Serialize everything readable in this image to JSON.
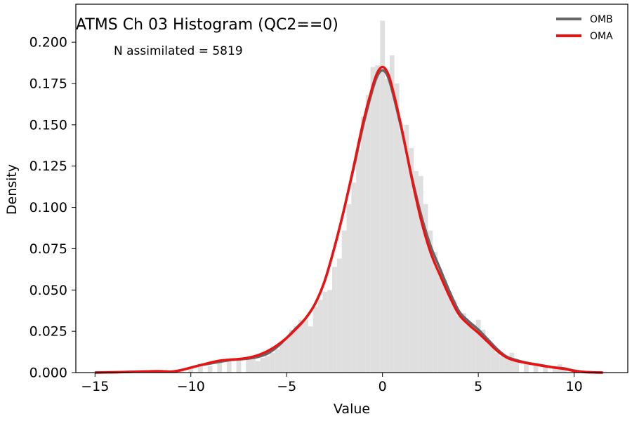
{
  "chart_data": {
    "type": "area",
    "title": "ATMS Ch 03 Histogram (QC2==0)",
    "annotation": "N assimilated = 5819",
    "xlabel": "Value",
    "ylabel": "Density",
    "xlim": [
      -16.0,
      12.8
    ],
    "ylim": [
      0.0,
      0.223
    ],
    "x_ticks": [
      -15,
      -10,
      -5,
      0,
      5,
      10
    ],
    "x_tick_labels": [
      "−15",
      "−10",
      "−5",
      "0",
      "5",
      "10"
    ],
    "y_ticks": [
      0.0,
      0.025,
      0.05,
      0.075,
      0.1,
      0.125,
      0.15,
      0.175,
      0.2
    ],
    "y_tick_labels": [
      "0.000",
      "0.025",
      "0.050",
      "0.075",
      "0.100",
      "0.125",
      "0.150",
      "0.175",
      "0.200"
    ],
    "grid": false,
    "legend_position": "top-right",
    "histogram": {
      "color": "#dfdfdf",
      "bin_width": 0.25,
      "bins": [
        [
          -15.0,
          0.0
        ],
        [
          -14.0,
          0.0
        ],
        [
          -13.0,
          0.0005
        ],
        [
          -12.0,
          0.0007
        ],
        [
          -11.0,
          0.0007
        ],
        [
          -10.5,
          0.002
        ],
        [
          -10.0,
          0.003
        ],
        [
          -9.5,
          0.004
        ],
        [
          -9.0,
          0.004
        ],
        [
          -8.5,
          0.007
        ],
        [
          -8.0,
          0.008
        ],
        [
          -7.5,
          0.008
        ],
        [
          -7.0,
          0.009
        ],
        [
          -6.75,
          0.009
        ],
        [
          -6.5,
          0.007
        ],
        [
          -6.25,
          0.009
        ],
        [
          -6.0,
          0.01
        ],
        [
          -5.75,
          0.012
        ],
        [
          -5.5,
          0.014
        ],
        [
          -5.25,
          0.018
        ],
        [
          -5.0,
          0.021
        ],
        [
          -4.75,
          0.026
        ],
        [
          -4.5,
          0.028
        ],
        [
          -4.25,
          0.032
        ],
        [
          -4.0,
          0.032
        ],
        [
          -3.75,
          0.028
        ],
        [
          -3.5,
          0.04
        ],
        [
          -3.25,
          0.044
        ],
        [
          -3.0,
          0.049
        ],
        [
          -2.75,
          0.05
        ],
        [
          -2.5,
          0.064
        ],
        [
          -2.25,
          0.069
        ],
        [
          -2.0,
          0.086
        ],
        [
          -1.75,
          0.102
        ],
        [
          -1.5,
          0.115
        ],
        [
          -1.25,
          0.135
        ],
        [
          -1.0,
          0.155
        ],
        [
          -0.75,
          0.168
        ],
        [
          -0.5,
          0.185
        ],
        [
          -0.25,
          0.186
        ],
        [
          0.0,
          0.213
        ],
        [
          0.25,
          0.178
        ],
        [
          0.5,
          0.192
        ],
        [
          0.75,
          0.175
        ],
        [
          1.0,
          0.146
        ],
        [
          1.25,
          0.15
        ],
        [
          1.5,
          0.136
        ],
        [
          1.75,
          0.122
        ],
        [
          2.0,
          0.119
        ],
        [
          2.25,
          0.102
        ],
        [
          2.5,
          0.086
        ],
        [
          2.75,
          0.073
        ],
        [
          3.0,
          0.062
        ],
        [
          3.25,
          0.056
        ],
        [
          3.5,
          0.049
        ],
        [
          3.75,
          0.044
        ],
        [
          4.0,
          0.034
        ],
        [
          4.25,
          0.036
        ],
        [
          4.5,
          0.03
        ],
        [
          4.75,
          0.029
        ],
        [
          5.0,
          0.032
        ],
        [
          5.25,
          0.026
        ],
        [
          5.5,
          0.02
        ],
        [
          5.75,
          0.016
        ],
        [
          6.0,
          0.012
        ],
        [
          6.25,
          0.01
        ],
        [
          6.5,
          0.009
        ],
        [
          6.75,
          0.012
        ],
        [
          7.0,
          0.008
        ],
        [
          7.5,
          0.007
        ],
        [
          8.0,
          0.006
        ],
        [
          8.5,
          0.004
        ],
        [
          9.0,
          0.004
        ],
        [
          9.25,
          0.005
        ],
        [
          9.5,
          0.003
        ],
        [
          10.0,
          0.001
        ],
        [
          10.5,
          0.0005
        ],
        [
          11.0,
          0.0002
        ]
      ]
    },
    "series": [
      {
        "name": "OMB",
        "color": "#666666",
        "points": [
          [
            -15.0,
            0.0
          ],
          [
            -14.0,
            0.0002
          ],
          [
            -13.0,
            0.0005
          ],
          [
            -12.0,
            0.0008
          ],
          [
            -11.5,
            0.0008
          ],
          [
            -11.0,
            0.0006
          ],
          [
            -10.5,
            0.0015
          ],
          [
            -10.0,
            0.003
          ],
          [
            -9.5,
            0.0045
          ],
          [
            -9.0,
            0.0055
          ],
          [
            -8.5,
            0.0065
          ],
          [
            -8.0,
            0.0075
          ],
          [
            -7.5,
            0.008
          ],
          [
            -7.0,
            0.0085
          ],
          [
            -6.5,
            0.0095
          ],
          [
            -6.0,
            0.0115
          ],
          [
            -5.5,
            0.0155
          ],
          [
            -5.0,
            0.021
          ],
          [
            -4.5,
            0.027
          ],
          [
            -4.0,
            0.033
          ],
          [
            -3.5,
            0.042
          ],
          [
            -3.0,
            0.056
          ],
          [
            -2.5,
            0.076
          ],
          [
            -2.0,
            0.099
          ],
          [
            -1.5,
            0.124
          ],
          [
            -1.0,
            0.15
          ],
          [
            -0.5,
            0.172
          ],
          [
            -0.25,
            0.18
          ],
          [
            0.0,
            0.183
          ],
          [
            0.25,
            0.18
          ],
          [
            0.5,
            0.171
          ],
          [
            1.0,
            0.147
          ],
          [
            1.5,
            0.12
          ],
          [
            2.0,
            0.096
          ],
          [
            2.5,
            0.077
          ],
          [
            3.0,
            0.063
          ],
          [
            3.5,
            0.049
          ],
          [
            4.0,
            0.037
          ],
          [
            4.5,
            0.031
          ],
          [
            5.0,
            0.026
          ],
          [
            5.5,
            0.02
          ],
          [
            6.0,
            0.014
          ],
          [
            6.5,
            0.0095
          ],
          [
            7.0,
            0.0075
          ],
          [
            7.5,
            0.006
          ],
          [
            8.0,
            0.005
          ],
          [
            8.5,
            0.004
          ],
          [
            9.0,
            0.003
          ],
          [
            9.5,
            0.0025
          ],
          [
            10.0,
            0.0012
          ],
          [
            10.5,
            0.0004
          ],
          [
            11.0,
            0.0001
          ],
          [
            11.5,
            0.0
          ]
        ]
      },
      {
        "name": "OMA",
        "color": "#ee1111",
        "points": [
          [
            -15.0,
            0.0
          ],
          [
            -14.0,
            0.0002
          ],
          [
            -13.0,
            0.0005
          ],
          [
            -12.0,
            0.0008
          ],
          [
            -11.5,
            0.0008
          ],
          [
            -11.0,
            0.0006
          ],
          [
            -10.5,
            0.0015
          ],
          [
            -10.0,
            0.003
          ],
          [
            -9.5,
            0.0045
          ],
          [
            -9.0,
            0.006
          ],
          [
            -8.5,
            0.0072
          ],
          [
            -8.0,
            0.0078
          ],
          [
            -7.5,
            0.0082
          ],
          [
            -7.0,
            0.009
          ],
          [
            -6.5,
            0.0105
          ],
          [
            -6.0,
            0.013
          ],
          [
            -5.5,
            0.0165
          ],
          [
            -5.0,
            0.021
          ],
          [
            -4.5,
            0.0265
          ],
          [
            -4.0,
            0.033
          ],
          [
            -3.5,
            0.042
          ],
          [
            -3.0,
            0.056
          ],
          [
            -2.5,
            0.076
          ],
          [
            -2.0,
            0.099
          ],
          [
            -1.5,
            0.125
          ],
          [
            -1.0,
            0.152
          ],
          [
            -0.5,
            0.174
          ],
          [
            -0.25,
            0.182
          ],
          [
            0.0,
            0.185
          ],
          [
            0.25,
            0.182
          ],
          [
            0.5,
            0.173
          ],
          [
            1.0,
            0.148
          ],
          [
            1.5,
            0.119
          ],
          [
            2.0,
            0.093
          ],
          [
            2.5,
            0.073
          ],
          [
            3.0,
            0.059
          ],
          [
            3.5,
            0.046
          ],
          [
            4.0,
            0.035
          ],
          [
            4.5,
            0.029
          ],
          [
            5.0,
            0.024
          ],
          [
            5.5,
            0.0185
          ],
          [
            6.0,
            0.013
          ],
          [
            6.5,
            0.009
          ],
          [
            7.0,
            0.007
          ],
          [
            7.5,
            0.0058
          ],
          [
            8.0,
            0.0048
          ],
          [
            8.5,
            0.0038
          ],
          [
            9.0,
            0.003
          ],
          [
            9.5,
            0.0022
          ],
          [
            10.0,
            0.001
          ],
          [
            10.5,
            0.0004
          ],
          [
            11.0,
            0.0001
          ],
          [
            11.5,
            0.0
          ]
        ]
      }
    ]
  }
}
